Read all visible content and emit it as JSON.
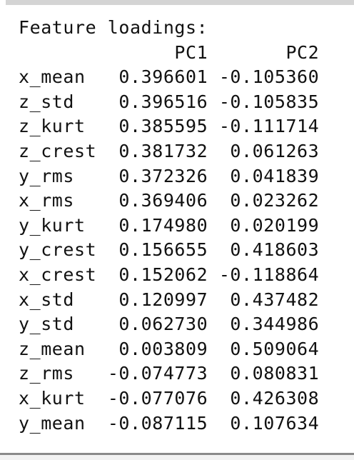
{
  "output": {
    "header": "Feature loadings:",
    "columns": [
      "",
      "PC1",
      "PC2"
    ],
    "rows": [
      [
        "x_mean",
        "0.396601",
        "-0.105360"
      ],
      [
        "z_std",
        "0.396516",
        "-0.105835"
      ],
      [
        "z_kurt",
        "0.385595",
        "-0.111714"
      ],
      [
        "z_crest",
        "0.381732",
        "0.061263"
      ],
      [
        "y_rms",
        "0.372326",
        "0.041839"
      ],
      [
        "x_rms",
        "0.369406",
        "0.023262"
      ],
      [
        "y_kurt",
        "0.174980",
        "0.020199"
      ],
      [
        "y_crest",
        "0.156655",
        "0.418603"
      ],
      [
        "x_crest",
        "0.152062",
        "-0.118864"
      ],
      [
        "x_std",
        "0.120997",
        "0.437482"
      ],
      [
        "y_std",
        "0.062730",
        "0.344986"
      ],
      [
        "z_mean",
        "0.003809",
        "0.509064"
      ],
      [
        "z_rms",
        "-0.074773",
        "0.080831"
      ],
      [
        "x_kurt",
        "-0.077076",
        "0.426308"
      ],
      [
        "y_mean",
        "-0.087115",
        "0.107634"
      ]
    ]
  }
}
